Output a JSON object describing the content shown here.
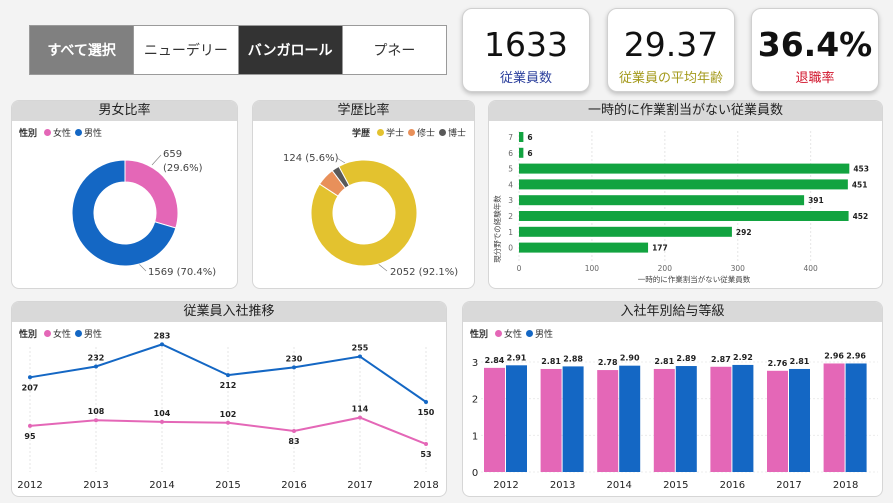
{
  "filters": {
    "select_all": "すべて選択",
    "new_delhi": "ニューデリー",
    "bangalore": "バンガロール",
    "pune": "プネー"
  },
  "kpis": {
    "employees": {
      "value": "1633",
      "label": "従業員数",
      "color": "#2b3f9c"
    },
    "avg_age": {
      "value": "29.37",
      "label": "従業員の平均年齢",
      "color": "#a49a1c"
    },
    "attrition": {
      "value": "36.4%",
      "label": "退職率",
      "color": "#d1142b"
    }
  },
  "colors": {
    "female": "#e467b7",
    "male": "#1467c4",
    "bachelor": "#e3c22f",
    "master": "#e8905a",
    "doctor": "#595959",
    "bench": "#12a340"
  },
  "gender": {
    "title": "男女比率",
    "legend_title": "性別",
    "female": "女性",
    "male": "男性",
    "female_label": "659",
    "female_pct": "(29.6%)",
    "male_label": "1569 (70.4%)"
  },
  "education": {
    "title": "学歴比率",
    "legend_title": "学歴",
    "bachelor": "学士",
    "master": "修士",
    "doctor": "博士",
    "master_label": "124 (5.6%)",
    "bachelor_label": "2052 (92.1%)"
  },
  "bench": {
    "title": "一時的に作業割当がない従業員数",
    "ylabel": "現分野での経験年数",
    "xlabel": "一時的に作業割当がない従業員数"
  },
  "hiring": {
    "title": "従業員入社推移",
    "legend_title": "性別",
    "female": "女性",
    "male": "男性"
  },
  "salary": {
    "title": "入社年別給与等級",
    "legend_title": "性別",
    "female": "女性",
    "male": "男性"
  },
  "chart_data": [
    {
      "type": "pie",
      "title": "男女比率",
      "labels": [
        "女性",
        "男性"
      ],
      "values": [
        659,
        1569
      ],
      "percent": [
        29.6,
        70.4
      ]
    },
    {
      "type": "pie",
      "title": "学歴比率",
      "labels": [
        "学士",
        "修士",
        "博士"
      ],
      "values": [
        2052,
        124,
        52
      ],
      "percent": [
        92.1,
        5.6,
        2.3
      ]
    },
    {
      "type": "bar",
      "title": "一時的に作業割当がない従業員数",
      "orientation": "horizontal",
      "categories": [
        "7",
        "6",
        "5",
        "4",
        "3",
        "2",
        "1",
        "0"
      ],
      "values": [
        6,
        6,
        453,
        451,
        391,
        452,
        292,
        177
      ],
      "xlabel": "一時的に作業割当がない従業員数",
      "ylabel": "現分野での経験年数",
      "xlim": [
        0,
        480
      ],
      "xticks": [
        0,
        100,
        200,
        300,
        400
      ]
    },
    {
      "type": "line",
      "title": "従業員入社推移",
      "x": [
        "2012",
        "2013",
        "2014",
        "2015",
        "2016",
        "2017",
        "2018"
      ],
      "series": [
        {
          "name": "女性",
          "values": [
            95,
            108,
            104,
            102,
            83,
            114,
            53
          ]
        },
        {
          "name": "男性",
          "values": [
            207,
            232,
            283,
            212,
            230,
            255,
            150
          ]
        }
      ]
    },
    {
      "type": "bar",
      "title": "入社年別給与等級",
      "categories": [
        "2012",
        "2013",
        "2014",
        "2015",
        "2016",
        "2017",
        "2018"
      ],
      "series": [
        {
          "name": "女性",
          "values": [
            2.84,
            2.81,
            2.78,
            2.81,
            2.87,
            2.76,
            2.96
          ]
        },
        {
          "name": "男性",
          "values": [
            2.91,
            2.88,
            2.9,
            2.89,
            2.92,
            2.81,
            2.96
          ]
        }
      ],
      "ylim": [
        0,
        3
      ],
      "yticks": [
        0,
        1,
        2,
        3
      ]
    }
  ]
}
